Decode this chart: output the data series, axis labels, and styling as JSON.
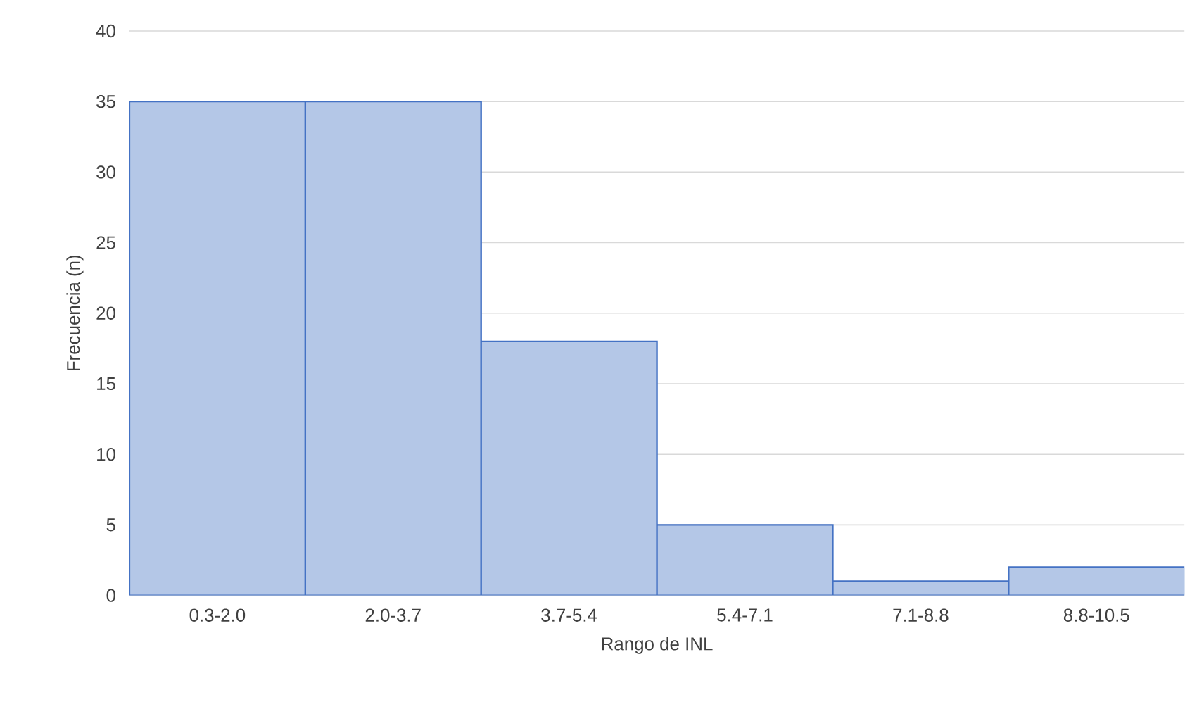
{
  "chart_data": {
    "type": "bar",
    "xlabel": "Rango de INL",
    "ylabel": "Frecuencia (n)",
    "categories": [
      "0.3-2.0",
      "2.0-3.7",
      "3.7-5.4",
      "5.4-7.1",
      "7.1-8.8",
      "8.8-10.5"
    ],
    "values": [
      35,
      35,
      18,
      5,
      1,
      2
    ],
    "color": "#b4c7e7",
    "ylim": [
      0,
      40
    ],
    "yticks": [
      0,
      5,
      10,
      15,
      20,
      25,
      30,
      35,
      40
    ],
    "grid": "y"
  }
}
